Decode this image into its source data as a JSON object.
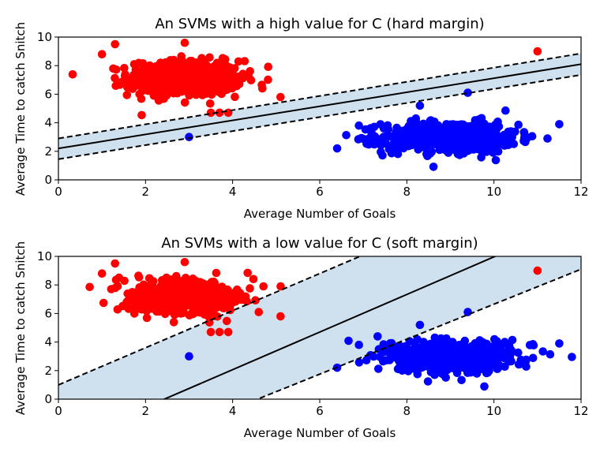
{
  "chart_data": [
    {
      "type": "scatter",
      "title": "An SVMs with a high value for C (hard margin)",
      "xlabel": "Average Number of Goals",
      "ylabel": "Average Time to catch Snitch",
      "xlim": [
        0,
        12
      ],
      "ylim": [
        0,
        10
      ],
      "xticks": [
        "0",
        "2",
        "4",
        "6",
        "8",
        "10",
        "12"
      ],
      "yticks": [
        "0",
        "2",
        "4",
        "6",
        "8",
        "10"
      ],
      "grid": false,
      "series": [
        {
          "color": "#ff0000",
          "cluster": {
            "center": [
              2.9,
              7.1
            ],
            "spread": [
              0.75,
              0.85
            ],
            "n": 600
          },
          "outliers": [
            [
              1.0,
              8.8
            ],
            [
              1.3,
              9.5
            ],
            [
              2.9,
              9.6
            ],
            [
              3.5,
              4.7
            ],
            [
              3.7,
              4.7
            ],
            [
              3.9,
              4.7
            ],
            [
              5.1,
              5.8
            ],
            [
              11.0,
              9.0
            ]
          ]
        },
        {
          "color": "#0000ff",
          "cluster": {
            "center": [
              9.0,
              3.0
            ],
            "spread": [
              0.9,
              0.75
            ],
            "n": 600
          },
          "outliers": [
            [
              3.0,
              3.0
            ],
            [
              6.4,
              2.2
            ],
            [
              6.9,
              3.8
            ],
            [
              11.5,
              3.9
            ],
            [
              9.4,
              6.1
            ],
            [
              8.3,
              5.2
            ]
          ]
        }
      ],
      "decision_boundary": {
        "y_at_x0": 2.2,
        "y_at_x12": 8.1
      },
      "margin_upper": {
        "y_at_x0": 2.9,
        "y_at_x12": 8.85
      },
      "margin_lower": {
        "y_at_x0": 1.45,
        "y_at_x12": 7.35
      },
      "margin_fill": "#cfe0ee"
    },
    {
      "type": "scatter",
      "title": "An SVMs with a low value for C (soft margin)",
      "xlabel": "Average Number of Goals",
      "ylabel": "Average Time to catch Snitch",
      "xlim": [
        0,
        12
      ],
      "ylim": [
        0,
        10
      ],
      "xticks": [
        "0",
        "2",
        "4",
        "6",
        "8",
        "10",
        "12"
      ],
      "yticks": [
        "0",
        "2",
        "4",
        "6",
        "8",
        "10"
      ],
      "grid": false,
      "series": [
        {
          "color": "#ff0000",
          "cluster": {
            "center": [
              2.9,
              7.1
            ],
            "spread": [
              0.75,
              0.85
            ],
            "n": 600
          },
          "outliers": [
            [
              1.0,
              8.8
            ],
            [
              1.3,
              9.5
            ],
            [
              2.9,
              9.6
            ],
            [
              3.5,
              4.7
            ],
            [
              3.7,
              4.7
            ],
            [
              3.9,
              4.7
            ],
            [
              5.1,
              5.8
            ],
            [
              4.6,
              6.1
            ],
            [
              11.0,
              9.0
            ]
          ]
        },
        {
          "color": "#0000ff",
          "cluster": {
            "center": [
              9.0,
              3.0
            ],
            "spread": [
              0.9,
              0.75
            ],
            "n": 600
          },
          "outliers": [
            [
              3.0,
              3.0
            ],
            [
              6.4,
              2.2
            ],
            [
              6.9,
              3.8
            ],
            [
              11.5,
              3.9
            ],
            [
              9.4,
              6.1
            ],
            [
              8.3,
              5.2
            ]
          ]
        }
      ],
      "decision_boundary": {
        "y_at_x0": -3.2,
        "y_at_x12": 12.6
      },
      "margin_upper": {
        "y_at_x0": 1.0,
        "y_at_x12": 16.6
      },
      "margin_lower": {
        "y_at_x0": -5.6,
        "y_at_x12": 9.1
      },
      "margin_fill": "#cfe0ee"
    }
  ]
}
